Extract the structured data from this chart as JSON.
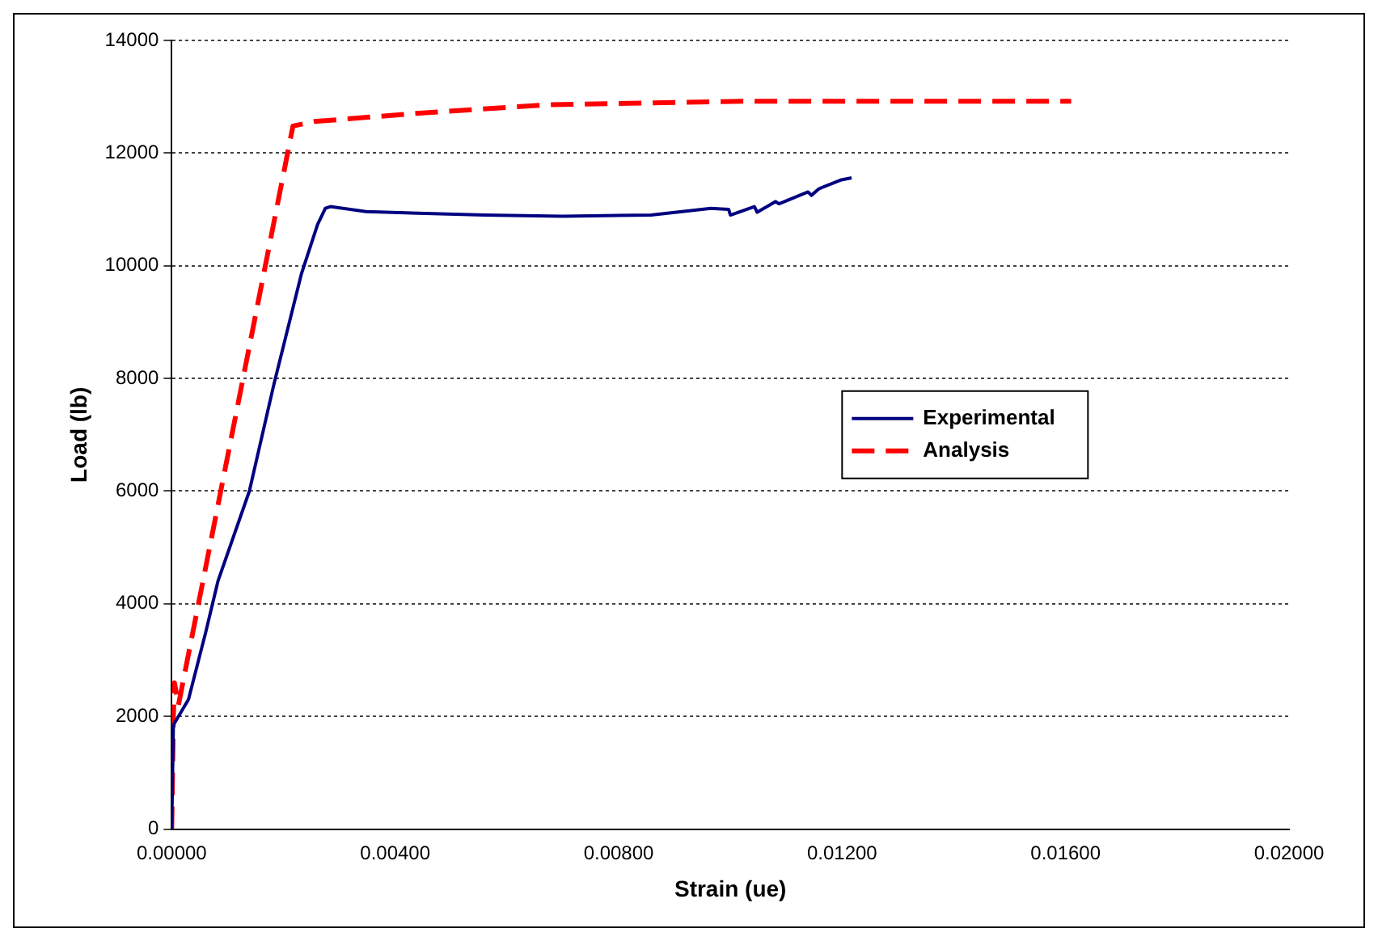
{
  "chart_data": {
    "type": "line",
    "xlabel": "Strain (ue)",
    "ylabel": "Load (lb)",
    "xlim": [
      0,
      0.02
    ],
    "xticks": [
      {
        "value": 0,
        "label": "0.00000"
      },
      {
        "value": 0.004,
        "label": "0.00400"
      },
      {
        "value": 0.008,
        "label": "0.00800"
      },
      {
        "value": 0.012,
        "label": "0.01200"
      },
      {
        "value": 0.016,
        "label": "0.01600"
      },
      {
        "value": 0.02,
        "label": "0.02000"
      }
    ],
    "ylim": [
      0,
      14000
    ],
    "yticks": [
      0,
      2000,
      4000,
      6000,
      8000,
      10000,
      12000,
      14000
    ],
    "grid": "y",
    "legend": "right",
    "marker": "none",
    "series": [
      {
        "name": "Experimental",
        "color": "#000080",
        "line_style": "solid",
        "x": [
          0,
          3e-05,
          0.0003,
          0.00061,
          0.00083,
          0.00139,
          0.00183,
          0.00232,
          0.00261,
          0.00275,
          0.00284,
          0.00348,
          0.0056,
          0.007,
          0.00858,
          0.00965,
          0.00997,
          0.01,
          0.01043,
          0.01048,
          0.01081,
          0.01087,
          0.01139,
          0.01145,
          0.01159,
          0.01197,
          0.01217
        ],
        "values": [
          0,
          1850,
          2300,
          3500,
          4410,
          6000,
          7900,
          9850,
          10730,
          11020,
          11050,
          10960,
          10900,
          10880,
          10900,
          11020,
          11000,
          10900,
          11050,
          10950,
          11140,
          11100,
          11310,
          11250,
          11370,
          11520,
          11560
        ]
      },
      {
        "name": "Analysis",
        "color": "#ff0000",
        "line_style": "dashed",
        "x": [
          0,
          3e-05,
          5e-05,
          0.00012,
          0.00217,
          0.00255,
          0.00443,
          0.00675,
          0.0102,
          0.0161
        ],
        "values": [
          0,
          2000,
          2600,
          2200,
          12480,
          12560,
          12710,
          12860,
          12920,
          12920
        ]
      }
    ]
  }
}
